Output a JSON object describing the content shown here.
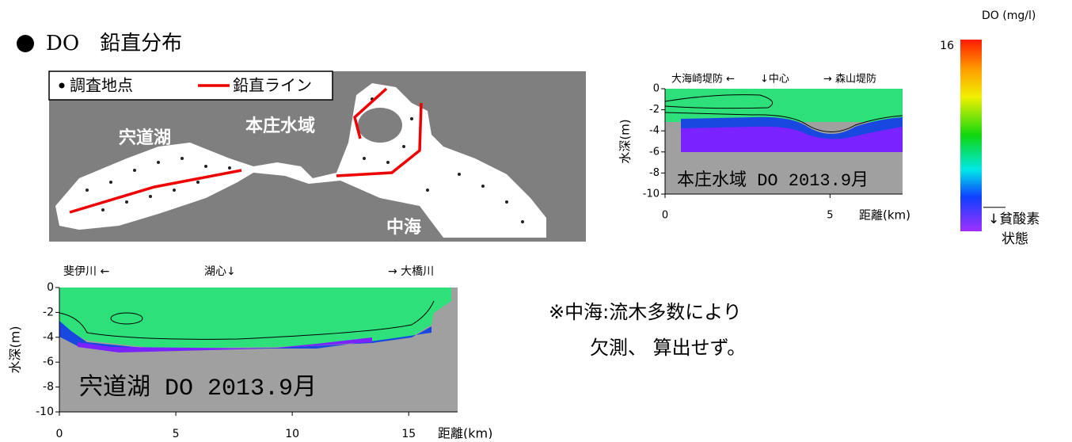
{
  "title": "DO　鉛直分布",
  "map": {
    "legend": {
      "point": "調査地点",
      "line": "鉛直ライン"
    },
    "labels": [
      "宍道湖",
      "本庄水域",
      "中海"
    ]
  },
  "charts": [
    {
      "title": "本庄水域 DO 2013.9月",
      "left_label": "大海崎堤防 ←",
      "center_label": "↓中心",
      "right_label": "→ 森山堤防",
      "ylabel": "水深(m)",
      "xlabel": "距離(km)",
      "xlim": [
        0,
        7.2
      ],
      "xticks": [
        0,
        5
      ],
      "ylim": [
        -10,
        0
      ],
      "yticks": [
        0,
        -2,
        -4,
        -6,
        -8,
        -10
      ]
    },
    {
      "title": "宍道湖 DO 2013.9月",
      "left_label": "斐伊川 ←",
      "center_label": "湖心↓",
      "right_label": "→ 大橋川",
      "ylabel": "水深(m)",
      "xlabel": "距離(km)",
      "xlim": [
        0,
        17.1
      ],
      "xticks": [
        0,
        5,
        10,
        15
      ],
      "ylim": [
        -10,
        0
      ],
      "yticks": [
        0,
        -2,
        -4,
        -6,
        -8,
        -10
      ]
    }
  ],
  "colorbar": {
    "label": "DO (mg/l)",
    "clim": [
      0,
      16
    ],
    "ticks": [
      16
    ],
    "threshold": 2,
    "threshold_label": [
      "↓貧酸素",
      "状態"
    ]
  },
  "note": [
    "※中海:流木多数により",
    "欠測、 算出せず。"
  ]
}
